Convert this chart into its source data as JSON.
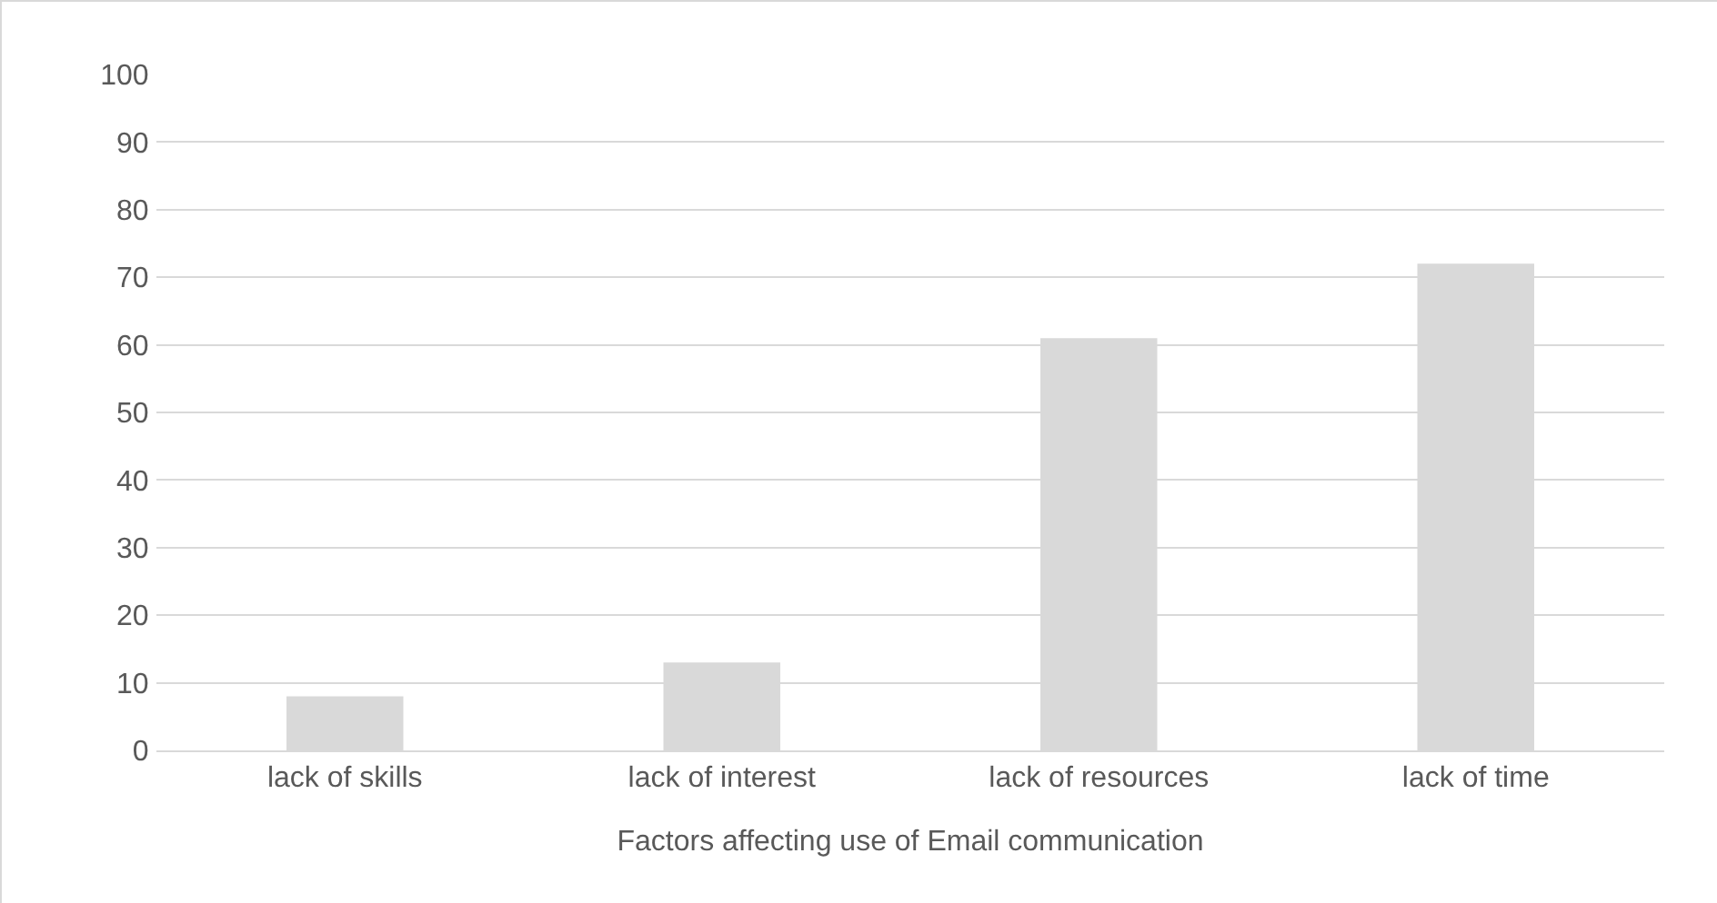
{
  "chart_data": {
    "type": "bar",
    "xlabel": "Factors affecting use of Email communication",
    "categories": [
      "lack of skills",
      "lack of interest",
      "lack of resources",
      "lack of time"
    ],
    "values": [
      8,
      13,
      61,
      72
    ],
    "color": "#d9d9d9",
    "ylim": [
      0,
      100
    ],
    "yticks": [
      0,
      10,
      20,
      30,
      40,
      50,
      60,
      70,
      80,
      90,
      100
    ],
    "grid": "y",
    "legend": false
  }
}
